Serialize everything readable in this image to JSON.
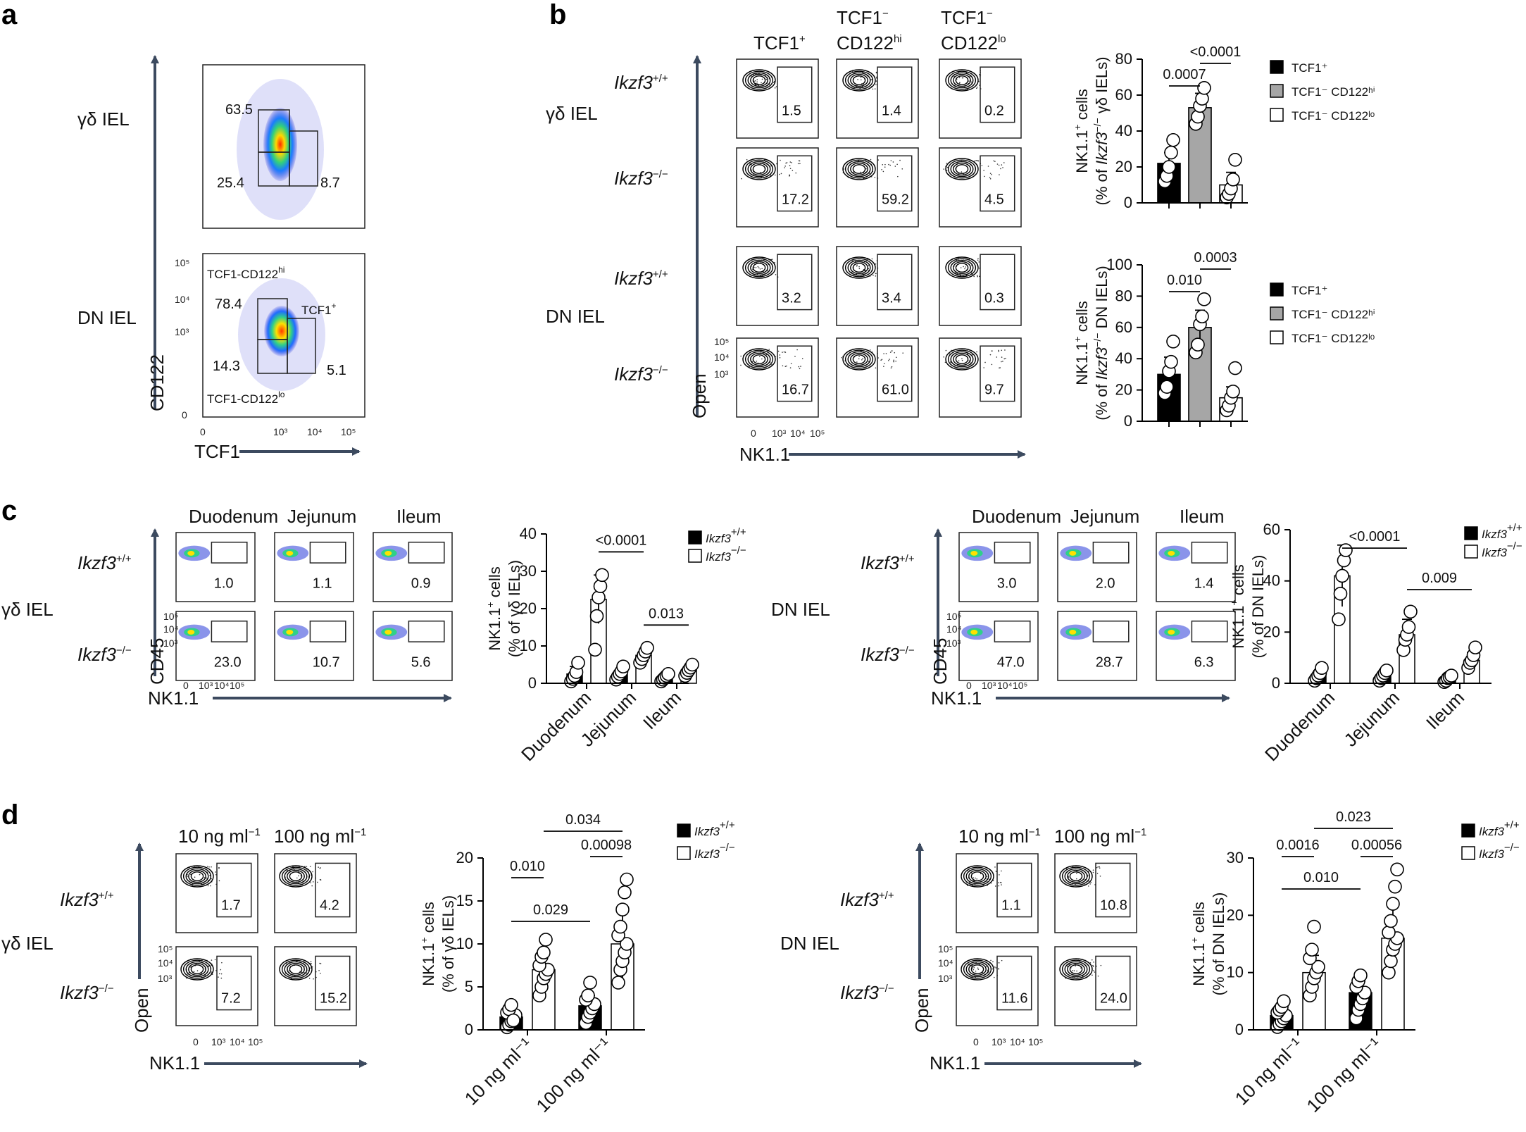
{
  "panels": {
    "a": {
      "letter": "a",
      "rows": [
        "γδ IEL",
        "DN IEL"
      ],
      "x_axis": "TCF1",
      "y_axis": "CD122",
      "x_ticks": [
        "0",
        "10³",
        "10⁴",
        "10⁵"
      ],
      "y_ticks": [
        "10⁵",
        "10⁴",
        "10³",
        "0"
      ],
      "top_plot": {
        "hi": "63.5",
        "lo": "25.4",
        "tcf": "8.7"
      },
      "bottom_plot": {
        "hi": "78.4",
        "lo": "14.3",
        "tcf": "5.1",
        "label_hi": "TCF1-CD122",
        "label_hi_sup": "hi",
        "label_lo": "TCF1-CD122",
        "label_lo_sup": "lo",
        "label_tcf": "TCF1",
        "label_tcf_sup": "+"
      }
    },
    "b": {
      "letter": "b",
      "columns": [
        {
          "line1": "TCF1",
          "sup1": "+",
          "line2": "",
          "sup2": ""
        },
        {
          "line1": "TCF1",
          "sup1": "−",
          "line2": "CD122",
          "sup2": "hi"
        },
        {
          "line1": "TCF1",
          "sup1": "−",
          "line2": "CD122",
          "sup2": "lo"
        }
      ],
      "groups": [
        "γδ IEL",
        "DN IEL"
      ],
      "rows": [
        {
          "genotype": "Ikzf3",
          "sup": "+/+",
          "values": [
            "1.5",
            "1.4",
            "0.2"
          ]
        },
        {
          "genotype": "Ikzf3",
          "sup": "−/−",
          "values": [
            "17.2",
            "59.2",
            "4.5"
          ]
        },
        {
          "genotype": "Ikzf3",
          "sup": "+/+",
          "values": [
            "3.2",
            "3.4",
            "0.3"
          ]
        },
        {
          "genotype": "Ikzf3",
          "sup": "−/−",
          "values": [
            "16.7",
            "61.0",
            "9.7"
          ]
        }
      ],
      "x_axis": "NK1.1",
      "y_axis": "Open",
      "x_ticks": [
        "0",
        "10³",
        "10⁴",
        "10⁵"
      ],
      "y_ticks": [
        "10⁵",
        "10⁴",
        "10³"
      ]
    },
    "c": {
      "letter": "c",
      "columns": [
        "Duodenum",
        "Jejunum",
        "Ileum"
      ],
      "genotypes": [
        {
          "name": "Ikzf3",
          "sup": "+/+"
        },
        {
          "name": "Ikzf3",
          "sup": "−/−"
        }
      ],
      "left_group": "γδ IEL",
      "right_group": "DN IEL",
      "left_values": [
        [
          "1.0",
          "1.1",
          "0.9"
        ],
        [
          "23.0",
          "10.7",
          "5.6"
        ]
      ],
      "right_values": [
        [
          "3.0",
          "2.0",
          "1.4"
        ],
        [
          "47.0",
          "28.7",
          "6.3"
        ]
      ],
      "x_axis": "NK1.1",
      "y_axis": "CD45",
      "x_ticks": [
        "0",
        "10³",
        "10⁴",
        "10⁵"
      ],
      "y_ticks": [
        "10⁵",
        "10⁴",
        "10³"
      ]
    },
    "d": {
      "letter": "d",
      "columns": [
        "10 ng ml",
        "100 ng ml"
      ],
      "col_sup": "−1",
      "genotypes": [
        {
          "name": "Ikzf3",
          "sup": "+/+"
        },
        {
          "name": "Ikzf3",
          "sup": "−/−"
        }
      ],
      "left_group": "γδ IEL",
      "right_group": "DN IEL",
      "left_values": [
        [
          "1.7",
          "4.2"
        ],
        [
          "7.2",
          "15.2"
        ]
      ],
      "right_values": [
        [
          "1.1",
          "10.8"
        ],
        [
          "11.6",
          "24.0"
        ]
      ],
      "x_axis": "NK1.1",
      "y_axis": "Open",
      "x_ticks": [
        "0",
        "10³",
        "10⁴",
        "10⁵"
      ],
      "y_ticks": [
        "10⁵",
        "10⁴",
        "10³"
      ]
    }
  },
  "chart_data": [
    {
      "id": "b_top",
      "type": "bar",
      "categories": [
        "TCF1⁺",
        "TCF1⁻ CD122ʰⁱ",
        "TCF1⁻ CD122ˡᵒ"
      ],
      "values": [
        22,
        53,
        10
      ],
      "errors": [
        6,
        8,
        7
      ],
      "points": [
        [
          12,
          15,
          20,
          28,
          35
        ],
        [
          44,
          48,
          54,
          58,
          64
        ],
        [
          3,
          5,
          8,
          13,
          24
        ]
      ],
      "ylabel_line1": "NK1.1",
      "ylabel_sup": "+",
      "ylabel_line1b": " cells",
      "ylabel_line2": "(% of ",
      "ylabel_gene": "Ikzf3",
      "ylabel_gene_sup": "−/−",
      "ylabel_tail": " γδ IELs)",
      "ylim": [
        0,
        80
      ],
      "yticks": [
        0,
        20,
        40,
        60,
        80
      ],
      "legend": [
        "TCF1⁺",
        "TCF1⁻ CD122ʰⁱ",
        "TCF1⁻ CD122ˡᵒ"
      ],
      "sig": [
        {
          "from": 0,
          "to": 1,
          "label": "0.0007"
        },
        {
          "from": 1,
          "to": 2,
          "label": "<0.0001"
        }
      ]
    },
    {
      "id": "b_bottom",
      "type": "bar",
      "categories": [
        "TCF1⁺",
        "TCF1⁻ CD122ʰⁱ",
        "TCF1⁻ CD122ˡᵒ"
      ],
      "values": [
        30,
        60,
        15
      ],
      "errors": [
        11,
        11,
        7
      ],
      "points": [
        [
          18,
          22,
          32,
          38,
          51
        ],
        [
          44,
          49,
          62,
          67,
          78
        ],
        [
          7,
          10,
          15,
          19,
          34
        ]
      ],
      "ylabel_line1": "NK1.1",
      "ylabel_sup": "+",
      "ylabel_line1b": " cells",
      "ylabel_line2": "(% of ",
      "ylabel_gene": "Ikzf3",
      "ylabel_gene_sup": "−/−",
      "ylabel_tail": " DN IELs)",
      "ylim": [
        0,
        100
      ],
      "yticks": [
        0,
        20,
        40,
        60,
        80,
        100
      ],
      "legend": [
        "TCF1⁺",
        "TCF1⁻ CD122ʰⁱ",
        "TCF1⁻ CD122ˡᵒ"
      ],
      "sig": [
        {
          "from": 0,
          "to": 1,
          "label": "0.010"
        },
        {
          "from": 1,
          "to": 2,
          "label": "0.0003"
        }
      ]
    },
    {
      "id": "c_left",
      "type": "bar",
      "categories": [
        "Duodenum",
        "Jejunum",
        "Ileum"
      ],
      "series": [
        {
          "name": "Ikzf3 +/+",
          "values": [
            2.5,
            2.3,
            1.5
          ],
          "errors": [
            2,
            1,
            0.8
          ],
          "points": [
            [
              0.5,
              1.2,
              2,
              3,
              5.5
            ],
            [
              1,
              1.8,
              2.5,
              3.2,
              4.5
            ],
            [
              0.5,
              1,
              1.5,
              2,
              2.5
            ]
          ]
        },
        {
          "name": "Ikzf3 −/−",
          "values": [
            22.5,
            7.5,
            3.5
          ],
          "errors": [
            6.5,
            1.5,
            1.2
          ],
          "points": [
            [
              9,
              18,
              23,
              26,
              29
            ],
            [
              5.5,
              6.5,
              7.5,
              8.5,
              9.5
            ],
            [
              2,
              2.8,
              3.5,
              4.2,
              5
            ]
          ]
        }
      ],
      "ylabel_line1": "NK1.1",
      "ylabel_sup": "+",
      "ylabel_line1b": " cells",
      "ylabel_line2": "(% of γδ IELs)",
      "ylim": [
        0,
        40
      ],
      "yticks": [
        0,
        10,
        20,
        30,
        40
      ],
      "sig": [
        {
          "from": 0,
          "to": 1,
          "label": "<0.0001"
        },
        {
          "from": 1,
          "to": 2,
          "label": "0.013"
        }
      ]
    },
    {
      "id": "c_right",
      "type": "bar",
      "categories": [
        "Duodenum",
        "Jejunum",
        "Ileum"
      ],
      "series": [
        {
          "name": "Ikzf3 +/+",
          "values": [
            3,
            3,
            2
          ],
          "errors": [
            2,
            1.5,
            1
          ],
          "points": [
            [
              1,
              2,
              3,
              4,
              6
            ],
            [
              1,
              2,
              3,
              4,
              5
            ],
            [
              0.5,
              1,
              2,
              2.5,
              3
            ]
          ]
        },
        {
          "name": "Ikzf3 −/−",
          "values": [
            42,
            19,
            9
          ],
          "errors": [
            12,
            6,
            3
          ],
          "points": [
            [
              25,
              35,
              42,
              48,
              52
            ],
            [
              13,
              17,
              19,
              22,
              28
            ],
            [
              6,
              8,
              9,
              11,
              14
            ]
          ]
        }
      ],
      "ylabel_line1": "NK1.1",
      "ylabel_sup": "+",
      "ylabel_line1b": " cells",
      "ylabel_line2": "(% of DN IELs)",
      "ylim": [
        0,
        60
      ],
      "yticks": [
        0,
        20,
        40,
        60
      ],
      "sig": [
        {
          "from": 0,
          "to": 1,
          "label": "<0.0001"
        },
        {
          "from": 1,
          "to": 2,
          "label": "0.009"
        }
      ]
    },
    {
      "id": "d_left",
      "type": "bar",
      "categories": [
        "10 ng ml⁻¹",
        "100 ng ml⁻¹"
      ],
      "series": [
        {
          "name": "Ikzf3 +/+",
          "values": [
            1.5,
            2.8
          ],
          "errors": [
            1.3,
            1.2
          ],
          "points": [
            [
              0.3,
              0.6,
              1,
              1.3,
              1.7,
              2,
              2.4,
              2.9,
              1.1
            ]
          ]
        },
        {
          "name": "Ikzf3 −/−",
          "values": [
            7,
            10
          ],
          "errors": [
            2.3,
            4.5
          ],
          "points": [
            [
              4,
              5,
              6,
              6.5,
              7,
              7.5,
              8.5,
              9,
              10.5
            ],
            [
              5.5,
              7,
              8,
              9,
              10,
              11,
              12,
              14,
              16,
              17.5
            ]
          ]
        }
      ],
      "extra_points_wt100": [
        0.8,
        1.5,
        2,
        2.5,
        3,
        3.5,
        4,
        5.5
      ],
      "ylabel_line1": "NK1.1",
      "ylabel_sup": "+",
      "ylabel_line1b": " cells",
      "ylabel_line2": "(% of γδ IELs)",
      "ylim": [
        0,
        20
      ],
      "yticks": [
        0,
        5,
        10,
        15,
        20
      ],
      "sig": [
        {
          "label": "0.010"
        },
        {
          "label": "0.029"
        },
        {
          "label": "0.034"
        },
        {
          "label": "0.00098"
        }
      ]
    },
    {
      "id": "d_right",
      "type": "bar",
      "categories": [
        "10 ng ml⁻¹",
        "100 ng ml⁻¹"
      ],
      "series": [
        {
          "name": "Ikzf3 +/+",
          "values": [
            2.5,
            6.5
          ],
          "errors": [
            1.5,
            2
          ],
          "points": [
            [
              0.5,
              1,
              1.5,
              2,
              2.5,
              3,
              3.5,
              4,
              5
            ]
          ]
        },
        {
          "name": "Ikzf3 −/−",
          "values": [
            10,
            16
          ],
          "errors": [
            3,
            6
          ],
          "points": [
            [
              6,
              7.5,
              9,
              10,
              11,
              12.5,
              14,
              18
            ],
            [
              10,
              12,
              14,
              15,
              16,
              17,
              19,
              22,
              25,
              28
            ]
          ]
        }
      ],
      "extra_points_wt100": [
        2,
        3.5,
        4.5,
        5.5,
        6.5,
        7.5,
        8.5,
        9.5
      ],
      "ylabel_line1": "NK1.1",
      "ylabel_sup": "+",
      "ylabel_line1b": " cells",
      "ylabel_line2": "(% of DN IELs)",
      "ylim": [
        0,
        30
      ],
      "yticks": [
        0,
        10,
        20,
        30
      ],
      "sig": [
        {
          "label": "0.0016"
        },
        {
          "label": "0.010"
        },
        {
          "label": "0.023"
        },
        {
          "label": "0.00056"
        }
      ]
    }
  ],
  "legend_labels": {
    "wt": "Ikzf3",
    "wt_sup": "+/+",
    "ko": "Ikzf3",
    "ko_sup": "−/−"
  },
  "colors": {
    "axis_arrow": "#3c4a5f",
    "bar_black": "#000000",
    "bar_grey": "#a6a6a6",
    "bar_white": "#ffffff"
  }
}
